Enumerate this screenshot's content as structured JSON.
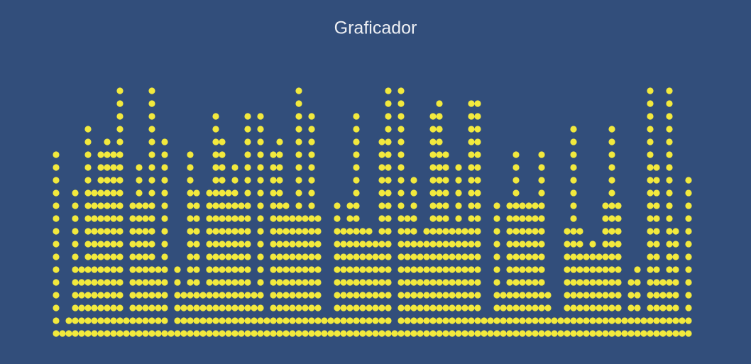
{
  "chart_data": {
    "type": "dot-column",
    "title": "Graficador",
    "color": "#f2e93d",
    "ylim": [
      0,
      20
    ],
    "values": [
      15,
      1,
      2,
      12,
      6,
      17,
      12,
      15,
      16,
      15,
      20,
      2,
      11,
      14,
      11,
      20,
      6,
      16,
      1,
      6,
      4,
      15,
      12,
      4,
      12,
      18,
      16,
      12,
      14,
      11,
      18,
      4,
      18,
      2,
      15,
      16,
      11,
      10,
      20,
      10,
      18,
      10,
      2,
      2,
      11,
      9,
      11,
      18,
      9,
      9,
      8,
      16,
      20,
      1,
      20,
      10,
      13,
      8,
      9,
      18,
      19,
      15,
      9,
      14,
      9,
      19,
      19,
      2,
      2,
      11,
      4,
      11,
      15,
      11,
      11,
      11,
      15,
      4,
      2,
      2,
      9,
      17,
      9,
      7,
      8,
      7,
      11,
      17,
      11,
      2,
      5,
      6,
      2,
      20,
      14,
      5,
      20,
      9,
      2,
      13
    ]
  }
}
